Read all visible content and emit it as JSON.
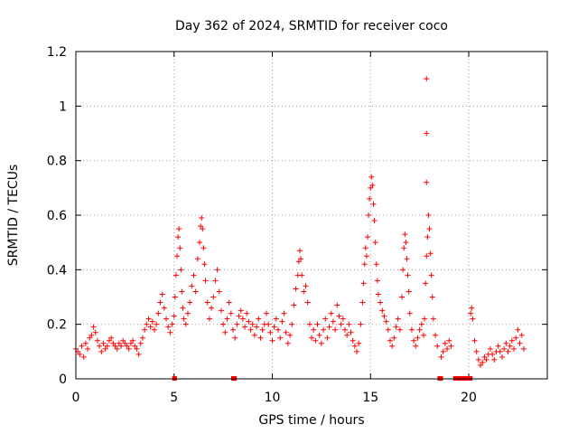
{
  "chart_data": {
    "type": "scatter",
    "title": "Day 362 of 2024, SRMTID for receiver coco",
    "xlabel": "GPS time / hours",
    "ylabel": "SRMTID / TECUs",
    "xlim": [
      0,
      24
    ],
    "ylim": [
      0,
      1.2
    ],
    "x_ticks": [
      0,
      5,
      10,
      15,
      20
    ],
    "y_ticks": [
      0,
      0.2,
      0.4,
      0.6,
      0.8,
      1,
      1.2
    ],
    "x_tick_labels": [
      "0",
      "5",
      "10",
      "15",
      "20"
    ],
    "y_tick_labels": [
      "0",
      "0.2",
      "0.4",
      "0.6",
      "0.8",
      "1",
      "1.2"
    ],
    "grid": true,
    "marker": "+",
    "color": "#ff0000",
    "series": [
      {
        "name": "SRMTID",
        "points": [
          [
            0.0,
            0.11
          ],
          [
            0.1,
            0.1
          ],
          [
            0.2,
            0.09
          ],
          [
            0.3,
            0.12
          ],
          [
            0.4,
            0.08
          ],
          [
            0.5,
            0.13
          ],
          [
            0.6,
            0.11
          ],
          [
            0.7,
            0.15
          ],
          [
            0.8,
            0.16
          ],
          [
            0.9,
            0.19
          ],
          [
            1.0,
            0.17
          ],
          [
            1.1,
            0.14
          ],
          [
            1.2,
            0.12
          ],
          [
            1.3,
            0.1
          ],
          [
            1.4,
            0.13
          ],
          [
            1.5,
            0.11
          ],
          [
            1.6,
            0.12
          ],
          [
            1.7,
            0.14
          ],
          [
            1.8,
            0.15
          ],
          [
            1.9,
            0.13
          ],
          [
            2.0,
            0.12
          ],
          [
            2.1,
            0.11
          ],
          [
            2.2,
            0.13
          ],
          [
            2.3,
            0.12
          ],
          [
            2.4,
            0.14
          ],
          [
            2.5,
            0.13
          ],
          [
            2.6,
            0.12
          ],
          [
            2.7,
            0.11
          ],
          [
            2.8,
            0.13
          ],
          [
            2.9,
            0.14
          ],
          [
            3.0,
            0.12
          ],
          [
            3.1,
            0.11
          ],
          [
            3.2,
            0.09
          ],
          [
            3.3,
            0.13
          ],
          [
            3.4,
            0.15
          ],
          [
            3.5,
            0.18
          ],
          [
            3.6,
            0.2
          ],
          [
            3.7,
            0.22
          ],
          [
            3.8,
            0.19
          ],
          [
            3.9,
            0.21
          ],
          [
            4.0,
            0.18
          ],
          [
            4.1,
            0.2
          ],
          [
            4.2,
            0.24
          ],
          [
            4.3,
            0.28
          ],
          [
            4.4,
            0.31
          ],
          [
            4.5,
            0.26
          ],
          [
            4.6,
            0.22
          ],
          [
            4.7,
            0.19
          ],
          [
            4.8,
            0.17
          ],
          [
            4.9,
            0.2
          ],
          [
            5.0,
            0.23
          ],
          [
            5.05,
            0.3
          ],
          [
            5.1,
            0.38
          ],
          [
            5.15,
            0.45
          ],
          [
            5.2,
            0.52
          ],
          [
            5.25,
            0.55
          ],
          [
            5.3,
            0.48
          ],
          [
            5.35,
            0.4
          ],
          [
            5.4,
            0.32
          ],
          [
            5.45,
            0.26
          ],
          [
            5.5,
            0.22
          ],
          [
            5.6,
            0.2
          ],
          [
            5.7,
            0.24
          ],
          [
            5.8,
            0.28
          ],
          [
            5.9,
            0.34
          ],
          [
            6.0,
            0.38
          ],
          [
            6.1,
            0.32
          ],
          [
            6.2,
            0.44
          ],
          [
            6.3,
            0.5
          ],
          [
            6.35,
            0.56
          ],
          [
            6.4,
            0.59
          ],
          [
            6.45,
            0.55
          ],
          [
            6.5,
            0.48
          ],
          [
            6.55,
            0.42
          ],
          [
            6.6,
            0.36
          ],
          [
            6.7,
            0.28
          ],
          [
            6.8,
            0.22
          ],
          [
            6.9,
            0.26
          ],
          [
            7.0,
            0.3
          ],
          [
            7.1,
            0.36
          ],
          [
            7.2,
            0.4
          ],
          [
            7.3,
            0.32
          ],
          [
            7.4,
            0.25
          ],
          [
            7.5,
            0.2
          ],
          [
            7.6,
            0.17
          ],
          [
            7.7,
            0.22
          ],
          [
            7.8,
            0.28
          ],
          [
            7.9,
            0.24
          ],
          [
            8.0,
            0.18
          ],
          [
            8.1,
            0.15
          ],
          [
            8.2,
            0.2
          ],
          [
            8.3,
            0.23
          ],
          [
            8.4,
            0.25
          ],
          [
            8.5,
            0.22
          ],
          [
            8.6,
            0.19
          ],
          [
            8.7,
            0.24
          ],
          [
            8.8,
            0.21
          ],
          [
            8.9,
            0.18
          ],
          [
            9.0,
            0.2
          ],
          [
            9.1,
            0.16
          ],
          [
            9.2,
            0.19
          ],
          [
            9.3,
            0.22
          ],
          [
            9.4,
            0.15
          ],
          [
            9.5,
            0.18
          ],
          [
            9.6,
            0.2
          ],
          [
            9.7,
            0.24
          ],
          [
            9.8,
            0.2
          ],
          [
            9.9,
            0.17
          ],
          [
            10.0,
            0.14
          ],
          [
            10.1,
            0.19
          ],
          [
            10.2,
            0.22
          ],
          [
            10.3,
            0.18
          ],
          [
            10.4,
            0.15
          ],
          [
            10.5,
            0.21
          ],
          [
            10.6,
            0.24
          ],
          [
            10.7,
            0.17
          ],
          [
            10.8,
            0.13
          ],
          [
            10.9,
            0.16
          ],
          [
            11.0,
            0.2
          ],
          [
            11.1,
            0.27
          ],
          [
            11.2,
            0.33
          ],
          [
            11.3,
            0.38
          ],
          [
            11.35,
            0.43
          ],
          [
            11.4,
            0.47
          ],
          [
            11.45,
            0.44
          ],
          [
            11.5,
            0.38
          ],
          [
            11.6,
            0.32
          ],
          [
            11.7,
            0.34
          ],
          [
            11.8,
            0.28
          ],
          [
            11.9,
            0.2
          ],
          [
            12.0,
            0.15
          ],
          [
            12.1,
            0.18
          ],
          [
            12.2,
            0.14
          ],
          [
            12.3,
            0.2
          ],
          [
            12.4,
            0.16
          ],
          [
            12.5,
            0.13
          ],
          [
            12.6,
            0.18
          ],
          [
            12.7,
            0.22
          ],
          [
            12.8,
            0.15
          ],
          [
            12.9,
            0.19
          ],
          [
            13.0,
            0.24
          ],
          [
            13.1,
            0.21
          ],
          [
            13.2,
            0.18
          ],
          [
            13.3,
            0.27
          ],
          [
            13.4,
            0.23
          ],
          [
            13.5,
            0.2
          ],
          [
            13.6,
            0.22
          ],
          [
            13.7,
            0.18
          ],
          [
            13.8,
            0.16
          ],
          [
            13.9,
            0.2
          ],
          [
            14.0,
            0.17
          ],
          [
            14.1,
            0.14
          ],
          [
            14.2,
            0.12
          ],
          [
            14.3,
            0.1
          ],
          [
            14.4,
            0.13
          ],
          [
            14.5,
            0.2
          ],
          [
            14.6,
            0.28
          ],
          [
            14.65,
            0.35
          ],
          [
            14.7,
            0.42
          ],
          [
            14.75,
            0.48
          ],
          [
            14.8,
            0.45
          ],
          [
            14.85,
            0.52
          ],
          [
            14.9,
            0.6
          ],
          [
            14.95,
            0.66
          ],
          [
            15.0,
            0.7
          ],
          [
            15.05,
            0.74
          ],
          [
            15.1,
            0.71
          ],
          [
            15.15,
            0.64
          ],
          [
            15.2,
            0.58
          ],
          [
            15.25,
            0.5
          ],
          [
            15.3,
            0.42
          ],
          [
            15.35,
            0.36
          ],
          [
            15.4,
            0.31
          ],
          [
            15.5,
            0.28
          ],
          [
            15.6,
            0.25
          ],
          [
            15.7,
            0.23
          ],
          [
            15.8,
            0.21
          ],
          [
            15.9,
            0.18
          ],
          [
            16.0,
            0.14
          ],
          [
            16.1,
            0.12
          ],
          [
            16.2,
            0.15
          ],
          [
            16.3,
            0.19
          ],
          [
            16.4,
            0.22
          ],
          [
            16.5,
            0.18
          ],
          [
            16.6,
            0.3
          ],
          [
            16.65,
            0.4
          ],
          [
            16.7,
            0.48
          ],
          [
            16.75,
            0.53
          ],
          [
            16.8,
            0.5
          ],
          [
            16.85,
            0.44
          ],
          [
            16.9,
            0.38
          ],
          [
            16.95,
            0.32
          ],
          [
            17.0,
            0.24
          ],
          [
            17.1,
            0.18
          ],
          [
            17.2,
            0.14
          ],
          [
            17.3,
            0.12
          ],
          [
            17.4,
            0.15
          ],
          [
            17.5,
            0.18
          ],
          [
            17.6,
            0.2
          ],
          [
            17.7,
            0.16
          ],
          [
            17.75,
            0.22
          ],
          [
            17.8,
            0.35
          ],
          [
            17.85,
            0.45
          ],
          [
            17.9,
            0.52
          ],
          [
            17.95,
            0.6
          ],
          [
            18.0,
            0.55
          ],
          [
            18.05,
            0.46
          ],
          [
            18.1,
            0.38
          ],
          [
            18.15,
            0.3
          ],
          [
            18.2,
            0.22
          ],
          [
            18.3,
            0.16
          ],
          [
            18.4,
            0.12
          ],
          [
            17.85,
            0.72
          ],
          [
            17.85,
            0.9
          ],
          [
            17.85,
            1.1
          ],
          [
            18.6,
            0.08
          ],
          [
            18.7,
            0.1
          ],
          [
            18.8,
            0.13
          ],
          [
            18.9,
            0.11
          ],
          [
            19.0,
            0.14
          ],
          [
            19.1,
            0.12
          ],
          [
            20.1,
            0.24
          ],
          [
            20.15,
            0.26
          ],
          [
            20.2,
            0.22
          ],
          [
            20.3,
            0.14
          ],
          [
            20.4,
            0.1
          ],
          [
            20.5,
            0.07
          ],
          [
            20.6,
            0.05
          ],
          [
            20.7,
            0.06
          ],
          [
            20.8,
            0.08
          ],
          [
            20.9,
            0.07
          ],
          [
            21.0,
            0.09
          ],
          [
            21.1,
            0.11
          ],
          [
            21.2,
            0.09
          ],
          [
            21.3,
            0.07
          ],
          [
            21.4,
            0.1
          ],
          [
            21.5,
            0.12
          ],
          [
            21.6,
            0.1
          ],
          [
            21.7,
            0.08
          ],
          [
            21.8,
            0.11
          ],
          [
            21.9,
            0.13
          ],
          [
            22.0,
            0.1
          ],
          [
            22.1,
            0.12
          ],
          [
            22.2,
            0.14
          ],
          [
            22.3,
            0.11
          ],
          [
            22.4,
            0.15
          ],
          [
            22.5,
            0.18
          ],
          [
            22.6,
            0.13
          ],
          [
            22.7,
            0.16
          ],
          [
            22.8,
            0.11
          ]
        ]
      }
    ],
    "zero_value_runs": [
      [
        5.0,
        5.05
      ],
      [
        8.0,
        8.1
      ],
      [
        18.5,
        18.6
      ],
      [
        19.3,
        20.1
      ]
    ]
  }
}
